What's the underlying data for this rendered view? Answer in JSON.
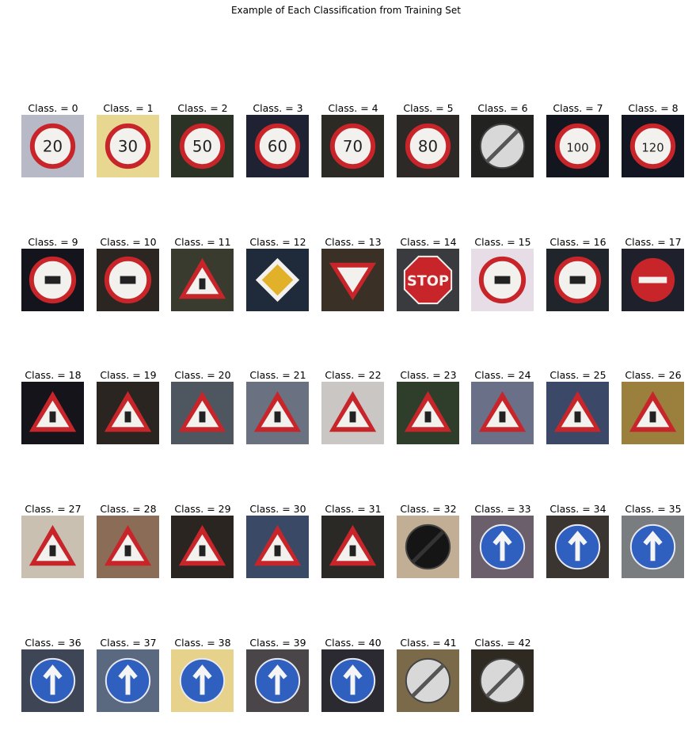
{
  "figure": {
    "title": "Example of Each Classification from Training Set"
  },
  "caption_prefix": "Class. = ",
  "panels": [
    {
      "label": "Class. = 0",
      "bg": "#b7b9c6",
      "icon": "circle-speed-20-icon"
    },
    {
      "label": "Class. = 1",
      "bg": "#e8d790",
      "icon": "circle-speed-30-icon"
    },
    {
      "label": "Class. = 2",
      "bg": "#2a3325",
      "icon": "circle-speed-50-icon"
    },
    {
      "label": "Class. = 3",
      "bg": "#1e2233",
      "icon": "circle-speed-60-icon"
    },
    {
      "label": "Class. = 4",
      "bg": "#2b2a24",
      "icon": "circle-speed-70-icon"
    },
    {
      "label": "Class. = 5",
      "bg": "#2c2926",
      "icon": "circle-speed-80-icon"
    },
    {
      "label": "Class. = 6",
      "bg": "#222320",
      "icon": "circle-end-speed-icon"
    },
    {
      "label": "Class. = 7",
      "bg": "#14161f",
      "icon": "circle-speed-100-icon"
    },
    {
      "label": "Class. = 8",
      "bg": "#121622",
      "icon": "circle-speed-120-icon"
    },
    {
      "label": "Class. = 9",
      "bg": "#14151c",
      "icon": "circle-no-passing-icon"
    },
    {
      "label": "Class. = 10",
      "bg": "#2b2621",
      "icon": "circle-no-passing-trucks-icon"
    },
    {
      "label": "Class. = 11",
      "bg": "#3a3b2f",
      "icon": "triangle-right-of-way-icon"
    },
    {
      "label": "Class. = 12",
      "bg": "#1f2a3a",
      "icon": "diamond-priority-road-icon"
    },
    {
      "label": "Class. = 13",
      "bg": "#3a3025",
      "icon": "triangle-yield-icon"
    },
    {
      "label": "Class. = 14",
      "bg": "#3a3b3f",
      "icon": "octagon-stop-icon"
    },
    {
      "label": "Class. = 15",
      "bg": "#e6dde6",
      "icon": "circle-no-vehicles-icon"
    },
    {
      "label": "Class. = 16",
      "bg": "#20242b",
      "icon": "circle-no-trucks-icon"
    },
    {
      "label": "Class. = 17",
      "bg": "#1e212b",
      "icon": "circle-no-entry-icon"
    },
    {
      "label": "Class. = 18",
      "bg": "#14141a",
      "icon": "triangle-caution-icon"
    },
    {
      "label": "Class. = 19",
      "bg": "#2a2520",
      "icon": "triangle-curve-left-icon"
    },
    {
      "label": "Class. = 20",
      "bg": "#4e5660",
      "icon": "triangle-curve-right-icon"
    },
    {
      "label": "Class. = 21",
      "bg": "#6a7282",
      "icon": "triangle-double-curve-icon"
    },
    {
      "label": "Class. = 22",
      "bg": "#c9c6c4",
      "icon": "triangle-bumpy-road-icon"
    },
    {
      "label": "Class. = 23",
      "bg": "#2f3d2b",
      "icon": "triangle-slippery-road-icon"
    },
    {
      "label": "Class. = 24",
      "bg": "#6a7088",
      "icon": "triangle-road-narrows-icon"
    },
    {
      "label": "Class. = 25",
      "bg": "#3c4868",
      "icon": "triangle-road-work-icon"
    },
    {
      "label": "Class. = 26",
      "bg": "#9a7f3d",
      "icon": "triangle-traffic-signals-icon"
    },
    {
      "label": "Class. = 27",
      "bg": "#c9c0b2",
      "icon": "triangle-pedestrians-icon"
    },
    {
      "label": "Class. = 28",
      "bg": "#8b6d57",
      "icon": "triangle-children-crossing-icon"
    },
    {
      "label": "Class. = 29",
      "bg": "#2a2520",
      "icon": "triangle-bicycles-icon"
    },
    {
      "label": "Class. = 30",
      "bg": "#3a4a66",
      "icon": "triangle-ice-snow-icon"
    },
    {
      "label": "Class. = 31",
      "bg": "#2b2925",
      "icon": "triangle-wild-animals-icon"
    },
    {
      "label": "Class. = 32",
      "bg": "#c2ad95",
      "icon": "circle-end-limits-icon"
    },
    {
      "label": "Class. = 33",
      "bg": "#6a5f6a",
      "icon": "circle-turn-right-icon"
    },
    {
      "label": "Class. = 34",
      "bg": "#3a3530",
      "icon": "circle-turn-left-icon"
    },
    {
      "label": "Class. = 35",
      "bg": "#7a7d80",
      "icon": "circle-ahead-only-icon"
    },
    {
      "label": "Class. = 36",
      "bg": "#3e4655",
      "icon": "circle-straight-or-right-icon"
    },
    {
      "label": "Class. = 37",
      "bg": "#5a6880",
      "icon": "circle-straight-or-left-icon"
    },
    {
      "label": "Class. = 38",
      "bg": "#e6d28a",
      "icon": "circle-keep-right-icon"
    },
    {
      "label": "Class. = 39",
      "bg": "#4a4548",
      "icon": "circle-keep-left-icon"
    },
    {
      "label": "Class. = 40",
      "bg": "#2a2a30",
      "icon": "circle-roundabout-icon"
    },
    {
      "label": "Class. = 41",
      "bg": "#7a6a4a",
      "icon": "circle-end-no-passing-icon"
    },
    {
      "label": "Class. = 42",
      "bg": "#2e2a22",
      "icon": "circle-end-no-passing-trucks-icon"
    }
  ]
}
